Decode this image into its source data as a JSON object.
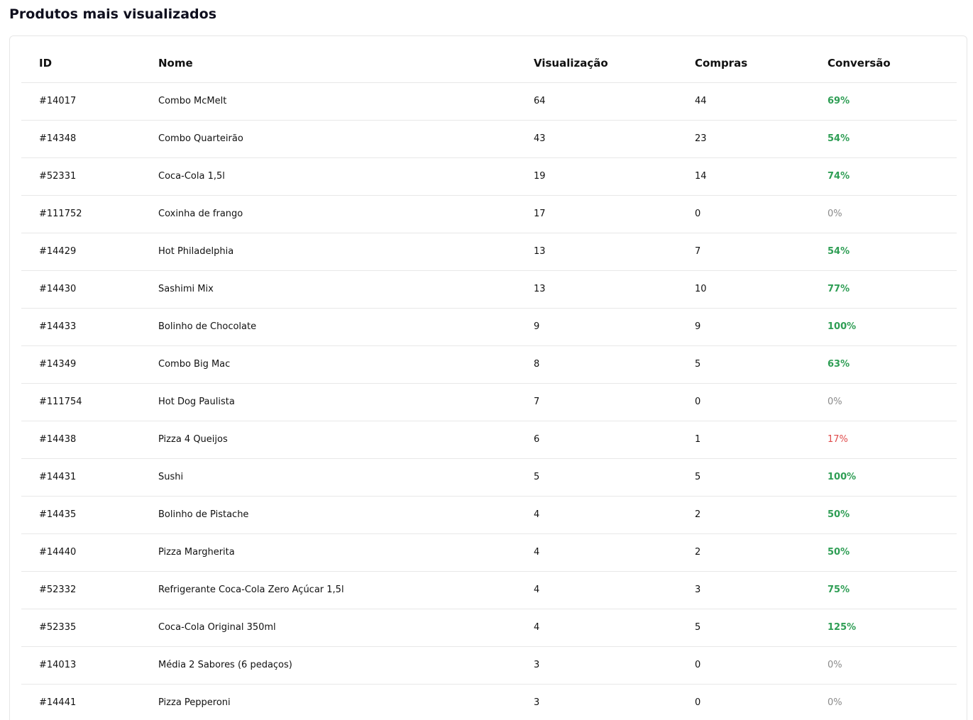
{
  "page": {
    "title": "Produtos mais visualizados"
  },
  "table": {
    "headers": [
      "ID",
      "Nome",
      "Visualização",
      "Compras",
      "Conversão"
    ],
    "rows": [
      {
        "id": "#14017",
        "name": "Combo McMelt",
        "views": "64",
        "purchases": "44",
        "conversion": "69%",
        "status": "good"
      },
      {
        "id": "#14348",
        "name": "Combo Quarteirão",
        "views": "43",
        "purchases": "23",
        "conversion": "54%",
        "status": "good"
      },
      {
        "id": "#52331",
        "name": "Coca-Cola 1,5l",
        "views": "19",
        "purchases": "14",
        "conversion": "74%",
        "status": "good"
      },
      {
        "id": "#111752",
        "name": "Coxinha de frango",
        "views": "17",
        "purchases": "0",
        "conversion": "0%",
        "status": "zero"
      },
      {
        "id": "#14429",
        "name": "Hot Philadelphia",
        "views": "13",
        "purchases": "7",
        "conversion": "54%",
        "status": "good"
      },
      {
        "id": "#14430",
        "name": "Sashimi Mix",
        "views": "13",
        "purchases": "10",
        "conversion": "77%",
        "status": "good"
      },
      {
        "id": "#14433",
        "name": "Bolinho de Chocolate",
        "views": "9",
        "purchases": "9",
        "conversion": "100%",
        "status": "good"
      },
      {
        "id": "#14349",
        "name": "Combo Big Mac",
        "views": "8",
        "purchases": "5",
        "conversion": "63%",
        "status": "good"
      },
      {
        "id": "#111754",
        "name": "Hot Dog Paulista",
        "views": "7",
        "purchases": "0",
        "conversion": "0%",
        "status": "zero"
      },
      {
        "id": "#14438",
        "name": "Pizza 4 Queijos",
        "views": "6",
        "purchases": "1",
        "conversion": "17%",
        "status": "bad"
      },
      {
        "id": "#14431",
        "name": "Sushi",
        "views": "5",
        "purchases": "5",
        "conversion": "100%",
        "status": "good"
      },
      {
        "id": "#14435",
        "name": "Bolinho de Pistache",
        "views": "4",
        "purchases": "2",
        "conversion": "50%",
        "status": "good"
      },
      {
        "id": "#14440",
        "name": "Pizza Margherita",
        "views": "4",
        "purchases": "2",
        "conversion": "50%",
        "status": "good"
      },
      {
        "id": "#52332",
        "name": "Refrigerante Coca-Cola Zero Açúcar 1,5l",
        "views": "4",
        "purchases": "3",
        "conversion": "75%",
        "status": "good"
      },
      {
        "id": "#52335",
        "name": "Coca-Cola Original 350ml",
        "views": "4",
        "purchases": "5",
        "conversion": "125%",
        "status": "good"
      },
      {
        "id": "#14013",
        "name": "Média 2 Sabores (6 pedaços)",
        "views": "3",
        "purchases": "0",
        "conversion": "0%",
        "status": "zero"
      },
      {
        "id": "#14441",
        "name": "Pizza Pepperoni",
        "views": "3",
        "purchases": "0",
        "conversion": "0%",
        "status": "zero"
      }
    ]
  },
  "colors": {
    "conversion_good": "#2f9e55",
    "conversion_zero": "#8a8a8a",
    "conversion_bad": "#e04b4b"
  }
}
